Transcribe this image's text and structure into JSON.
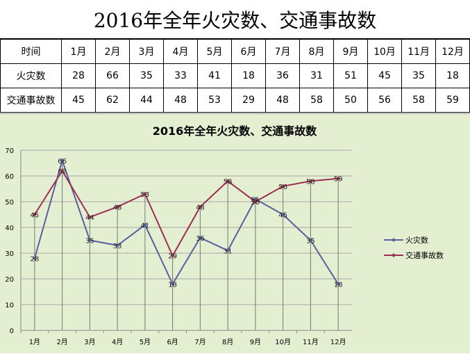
{
  "page_title": "2016年全年火灾数、交通事故数",
  "table": {
    "header_label": "时间",
    "months": [
      "1月",
      "2月",
      "3月",
      "4月",
      "5月",
      "6月",
      "7月",
      "8月",
      "9月",
      "10月",
      "11月",
      "12月"
    ],
    "rows": [
      {
        "label": "火灾数",
        "values": [
          "28",
          "66",
          "35",
          "33",
          "41",
          "18",
          "36",
          "31",
          "51",
          "45",
          "35",
          "18"
        ]
      },
      {
        "label": "交通事故数",
        "values": [
          "45",
          "62",
          "44",
          "48",
          "53",
          "29",
          "48",
          "58",
          "50",
          "56",
          "58",
          "59"
        ]
      }
    ]
  },
  "chart_data": {
    "type": "line",
    "title": "2016年全年火灾数、交通事故数",
    "categories": [
      "1月",
      "2月",
      "3月",
      "4月",
      "5月",
      "6月",
      "7月",
      "8月",
      "9月",
      "10月",
      "11月",
      "12月"
    ],
    "series": [
      {
        "name": "火灾数",
        "values": [
          28,
          66,
          35,
          33,
          41,
          18,
          36,
          31,
          51,
          45,
          35,
          18
        ],
        "color": "#5b5fa0"
      },
      {
        "name": "交通事故数",
        "values": [
          45,
          62,
          44,
          48,
          53,
          29,
          48,
          58,
          50,
          56,
          58,
          59
        ],
        "color": "#9c2e52"
      }
    ],
    "ylim": [
      0,
      70
    ],
    "yticks": [
      0,
      10,
      20,
      30,
      40,
      50,
      60,
      70
    ],
    "grid": true,
    "drop_lines": true,
    "legend_position": "right",
    "background": "#e4eed0"
  }
}
